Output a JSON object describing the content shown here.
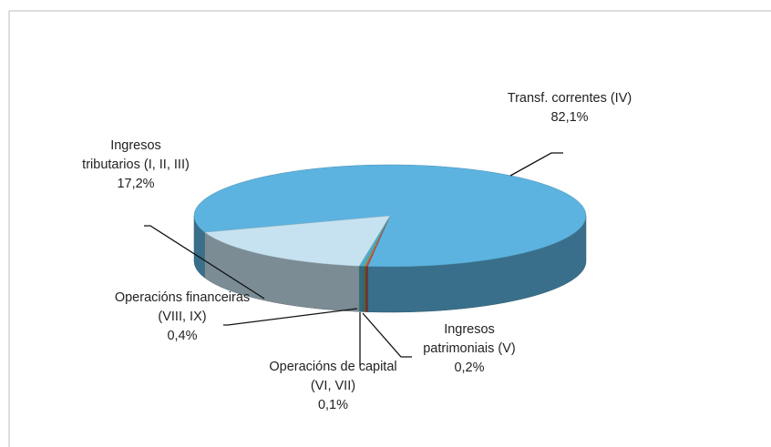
{
  "chart_data": {
    "type": "pie3d",
    "categories": [
      "Transf. correntes (IV)",
      "Ingresos patrimoniais (V)",
      "Operacións de capital (VI, VII)",
      "Operacións financeiras (VIII, IX)",
      "Ingresos tributarios (I, II, III)"
    ],
    "values": [
      82.1,
      0.2,
      0.1,
      0.4,
      17.2
    ],
    "value_labels": [
      "82,1%",
      "0,2%",
      "0,1%",
      "0,4%",
      "17,2%"
    ],
    "colors": [
      "#5cb3df",
      "#c0504d",
      "#9bbb59",
      "#4bacc6",
      "#c6e2f0"
    ]
  }
}
